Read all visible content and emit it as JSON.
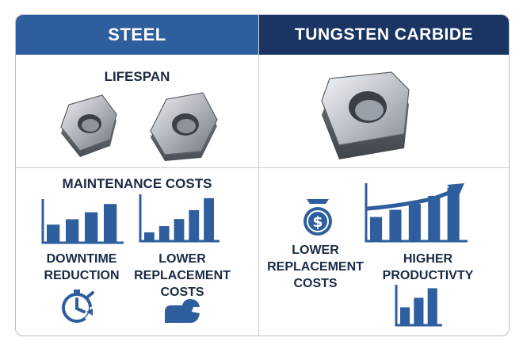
{
  "steel": {
    "header": "STEEL",
    "lifespan_label": "LIFESPAN",
    "maintenance_label": "MAINTENANCE COSTS",
    "downtime_label_1": "DOWNTIME",
    "downtime_label_2": "REDUCTION",
    "replacement_label_1": "LOWER",
    "replacement_label_2": "REPLACEMENT",
    "replacement_label_3": "COSTS",
    "downtime_bar_levels": [
      0.42,
      0.55,
      0.72,
      0.92
    ],
    "replacement_bar_levels": [
      0.18,
      0.32,
      0.48,
      0.68,
      0.95
    ]
  },
  "carbide": {
    "header": "TUNGSTEN CARBIDE",
    "replacement_label_1": "LOWER",
    "replacement_label_2": "REPLACEMENT",
    "replacement_label_3": "COSTS",
    "productivity_label_1": "HIGHER",
    "productivity_label_2": "PRODUCTIVTY",
    "productivity_bar_levels": [
      0.42,
      0.55,
      0.66,
      0.8,
      0.95
    ],
    "small_bar_levels": [
      0.45,
      0.7,
      0.95
    ]
  },
  "colors": {
    "blue": "#2f5e9e",
    "navy": "#1a3563",
    "text": "#1b2a44"
  },
  "icons": [
    "steel-insert-round-icon",
    "steel-insert-square-icon",
    "carbide-insert-icon",
    "dollar-badge-icon",
    "stopwatch-icon",
    "wrench-icon",
    "trend-arrow-icon"
  ]
}
